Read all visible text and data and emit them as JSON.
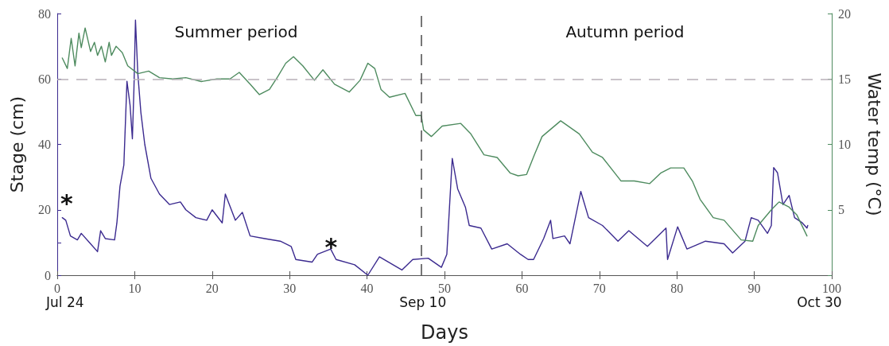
{
  "chart_data": {
    "type": "line",
    "xlabel": "Days",
    "ylabel": "Stage (cm)",
    "y2label": "Water temp (°C)",
    "xlim": [
      0,
      100
    ],
    "xticks": [
      0,
      10,
      20,
      30,
      40,
      50,
      60,
      70,
      80,
      90,
      100
    ],
    "ylim": [
      0,
      80
    ],
    "yticks": [
      0,
      {
        "value": 10,
        "label": null
      },
      20,
      40,
      60,
      80
    ],
    "y2lim": [
      0,
      20
    ],
    "y2ticks": [
      {
        "value": 0,
        "label": null
      },
      5,
      10,
      15,
      20
    ],
    "grid": false,
    "marker": "none",
    "line_style": "solid",
    "series": [
      {
        "color": "#3b2a8f",
        "x": [
          0.65,
          1.1,
          1.7,
          2.6,
          3.1,
          4.3,
          5.2,
          5.6,
          6.2,
          7.4,
          7.7,
          8.1,
          8.6,
          9.0,
          9.4,
          9.7,
          9.9,
          10.1,
          10.4,
          10.8,
          11.3,
          12.1,
          13.2,
          14.5,
          15.9,
          16.6,
          17.9,
          19.3,
          20,
          21.3,
          21.7,
          23,
          23.9,
          24.9,
          26.8,
          28.8,
          30.2,
          30.8,
          32.9,
          33.6,
          35.3,
          36,
          38.4,
          40.1,
          41.6,
          44.5,
          45.9,
          47.9,
          49.6,
          50.3,
          51,
          51.7,
          52.7,
          53.2,
          54.7,
          56.1,
          58.1,
          59.8,
          60.8,
          61.5,
          62.8,
          63.7,
          64,
          65.5,
          66.2,
          67.6,
          68.6,
          70.4,
          72.4,
          73.8,
          76.2,
          78.6,
          78.8,
          80.1,
          81.3,
          83.7,
          86.1,
          87.2,
          88.8,
          89.6,
          90.5,
          91.7,
          92.2,
          92.5,
          93.0,
          93.7,
          94.5,
          95.2,
          96.2,
          96.8,
          96.9
        ],
        "values": [
          17.6,
          16.8,
          12,
          10.8,
          12.8,
          9.6,
          7.2,
          13.6,
          11.2,
          10.8,
          16,
          27.2,
          33.7,
          59.3,
          52,
          41.7,
          56.9,
          78,
          61.7,
          49.7,
          40,
          29.6,
          24.8,
          21.6,
          22.4,
          20,
          17.6,
          16.8,
          20,
          16,
          24.8,
          16.8,
          19.2,
          12,
          11.2,
          10.4,
          8.8,
          4.8,
          4,
          6.4,
          8,
          4.8,
          3.2,
          0,
          5.6,
          1.6,
          4.8,
          5.2,
          2.4,
          6.4,
          35.7,
          26.4,
          20.8,
          15.2,
          14.4,
          8,
          9.6,
          6.4,
          4.8,
          4.8,
          11.2,
          16.8,
          11.2,
          12,
          9.6,
          25.6,
          17.6,
          15.2,
          10.4,
          13.6,
          8.8,
          14.4,
          4.8,
          14.8,
          8,
          10.4,
          9.6,
          6.8,
          10.4,
          17.6,
          16.8,
          12.8,
          15.2,
          32.9,
          31.3,
          21.6,
          24.4,
          17.6,
          16,
          14.4,
          15.2
        ]
      },
      {
        "color": "#4e8b5f",
        "axis": "y2",
        "x": [
          0.65,
          1.3,
          1.8,
          2.3,
          2.8,
          3.1,
          3.6,
          4.3,
          4.8,
          5.2,
          5.7,
          6.2,
          6.7,
          7.0,
          7.6,
          8.4,
          9.1,
          10.4,
          11.8,
          13.2,
          14.9,
          16.6,
          18.6,
          20.6,
          22.3,
          23.5,
          24.9,
          26.1,
          27.4,
          28.5,
          29.5,
          30.5,
          31.7,
          33.2,
          34.3,
          35.8,
          37.7,
          39.1,
          40.1,
          41.0,
          41.8,
          42.9,
          44.9,
          46.3,
          47,
          47.3,
          48.3,
          49.7,
          52.1,
          53.4,
          55.1,
          56.8,
          58.5,
          59.5,
          60.6,
          61.6,
          62.6,
          65,
          67.4,
          69.1,
          70.4,
          72.8,
          74.5,
          76.5,
          77.9,
          79.2,
          80.9,
          82,
          83,
          84.7,
          86.1,
          88.3,
          89.8,
          90.5,
          92.2,
          93.2,
          94.5,
          95.5,
          96.8
        ],
        "values": [
          16.6,
          15.8,
          18.1,
          16,
          18.5,
          17.4,
          18.9,
          17.1,
          17.8,
          16.8,
          17.5,
          16.3,
          17.8,
          16.8,
          17.5,
          17,
          16,
          15.4,
          15.6,
          15.1,
          15,
          15.1,
          14.8,
          15,
          15,
          15.5,
          14.6,
          13.8,
          14.2,
          15.2,
          16.2,
          16.7,
          16,
          14.9,
          15.7,
          14.6,
          14,
          14.9,
          16.2,
          15.8,
          14.2,
          13.6,
          13.9,
          12.2,
          12.2,
          11.1,
          10.6,
          11.4,
          11.6,
          10.8,
          9.2,
          9,
          7.8,
          7.6,
          7.7,
          9.2,
          10.6,
          11.8,
          10.8,
          9.4,
          9.0,
          7.2,
          7.2,
          7,
          7.8,
          8.2,
          8.2,
          7.2,
          5.8,
          4.4,
          4.2,
          2.7,
          2.6,
          3.8,
          5,
          5.6,
          5.2,
          4.6,
          3
        ]
      }
    ],
    "ref_lines": [
      {
        "axis": "y",
        "value": 60,
        "color": "#b8b0b8",
        "line_style": "dashed"
      },
      {
        "axis": "x",
        "value": 47,
        "color": "#555555",
        "line_style": "dashed"
      }
    ],
    "annotations": [
      "Summer period",
      "Autumn period",
      "*",
      "*",
      "Jul 24",
      "Sep 10",
      "Oct 30"
    ]
  }
}
